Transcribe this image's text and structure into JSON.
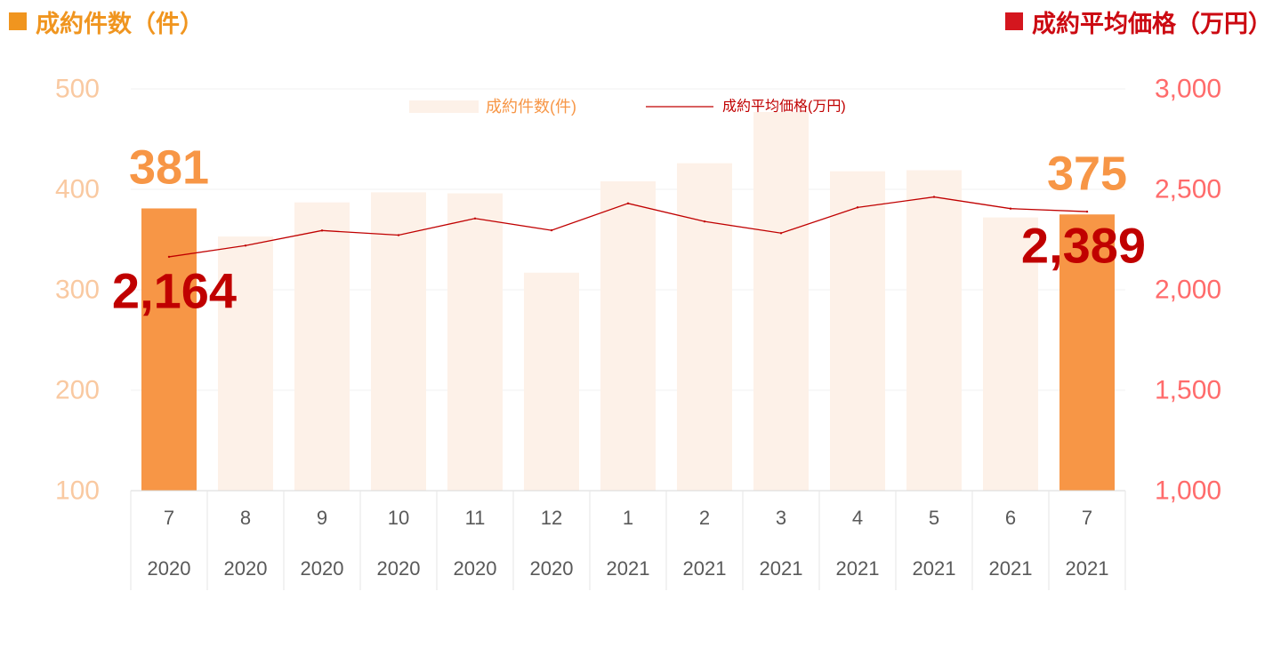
{
  "header": {
    "left_title": "成約件数（件）",
    "right_title": "成約平均価格（万円）"
  },
  "colors": {
    "bar_highlight": "#f79646",
    "bar_default": "#fdf1e8",
    "line": "#c00000",
    "left_axis_text": "#f9c9a1",
    "right_axis_text": "#ff6b6b",
    "header_left": "#f0951f",
    "header_right": "#cc0a12"
  },
  "chart_data": {
    "type": "bar+line",
    "categories": [
      {
        "month": "7",
        "year": "2020"
      },
      {
        "month": "8",
        "year": "2020"
      },
      {
        "month": "9",
        "year": "2020"
      },
      {
        "month": "10",
        "year": "2020"
      },
      {
        "month": "11",
        "year": "2020"
      },
      {
        "month": "12",
        "year": "2020"
      },
      {
        "month": "1",
        "year": "2021"
      },
      {
        "month": "2",
        "year": "2021"
      },
      {
        "month": "3",
        "year": "2021"
      },
      {
        "month": "4",
        "year": "2021"
      },
      {
        "month": "5",
        "year": "2021"
      },
      {
        "month": "6",
        "year": "2021"
      },
      {
        "month": "7",
        "year": "2021"
      }
    ],
    "series": [
      {
        "name": "成約件数(件)",
        "type": "bar",
        "axis": "left",
        "values": [
          381,
          353,
          387,
          397,
          396,
          317,
          408,
          426,
          477,
          418,
          419,
          372,
          375
        ],
        "highlight": [
          true,
          false,
          false,
          false,
          false,
          false,
          false,
          false,
          false,
          false,
          false,
          false,
          true
        ]
      },
      {
        "name": "成約平均価格(万円)",
        "type": "line",
        "axis": "right",
        "values": [
          2164,
          2220,
          2295,
          2272,
          2355,
          2296,
          2430,
          2340,
          2282,
          2410,
          2462,
          2404,
          2389
        ]
      }
    ],
    "left_axis": {
      "min": 100,
      "max": 500,
      "ticks": [
        "100",
        "200",
        "300",
        "400",
        "500"
      ]
    },
    "right_axis": {
      "min": 1000,
      "max": 3000,
      "ticks": [
        "1,000",
        "1,500",
        "2,000",
        "2,500",
        "3,000"
      ]
    },
    "data_labels": [
      {
        "text": "381",
        "series": 0,
        "index": 0
      },
      {
        "text": "375",
        "series": 0,
        "index": 12
      },
      {
        "text": "2,164",
        "series": 1,
        "index": 0
      },
      {
        "text": "2,389",
        "series": 1,
        "index": 12
      }
    ],
    "legend": {
      "placement": "top-center",
      "items": [
        "成約件数(件)",
        "成約平均価格(万円)"
      ]
    },
    "grid": true
  }
}
